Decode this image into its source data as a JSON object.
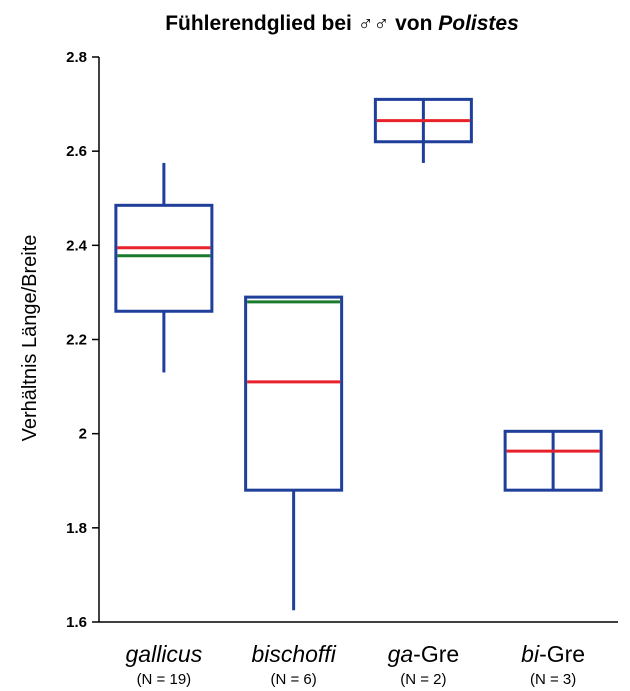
{
  "chart_data": {
    "type": "boxplot",
    "title": {
      "prefix": "Fühlerendglied bei ",
      "symbol": "♂♂",
      "middle": " von ",
      "genus": "Polistes"
    },
    "ylabel": "Verhältnis Länge/Breite",
    "ylim": [
      1.6,
      2.8
    ],
    "yticks": [
      1.6,
      1.8,
      2.0,
      2.2,
      2.4,
      2.6,
      2.8
    ],
    "ytick_labels": [
      "1.6",
      "1.8",
      "2",
      "2.2",
      "2.4",
      "2.6",
      "2.8"
    ],
    "grid": false,
    "colors": {
      "box": "#1f3f9a",
      "median": "#e8202a",
      "mean": "#1a7a2e",
      "axis": "#000000"
    },
    "categories": [
      {
        "italic": "gallicus",
        "suffix": "",
        "n": "(N = 19)",
        "whisker_low": 2.13,
        "q1": 2.26,
        "median": 2.395,
        "mean": 2.378,
        "q3": 2.485,
        "whisker_high": 2.575
      },
      {
        "italic": "bischoffi",
        "suffix": "",
        "n": "(N = 6)",
        "whisker_low": 1.625,
        "q1": 1.88,
        "median": 2.11,
        "mean": 2.28,
        "q3": 2.29,
        "whisker_high": 2.29
      },
      {
        "italic": "ga",
        "suffix": "-Gre",
        "n": "(N = 2)",
        "whisker_low": 2.575,
        "q1": 2.62,
        "median": 2.665,
        "mean": null,
        "q3": 2.71,
        "whisker_high": 2.71
      },
      {
        "italic": "bi",
        "suffix": "-Gre",
        "n": "(N = 3)",
        "whisker_low": 1.88,
        "q1": 1.88,
        "median": 1.963,
        "mean": null,
        "q3": 2.005,
        "whisker_high": 2.005
      }
    ]
  }
}
